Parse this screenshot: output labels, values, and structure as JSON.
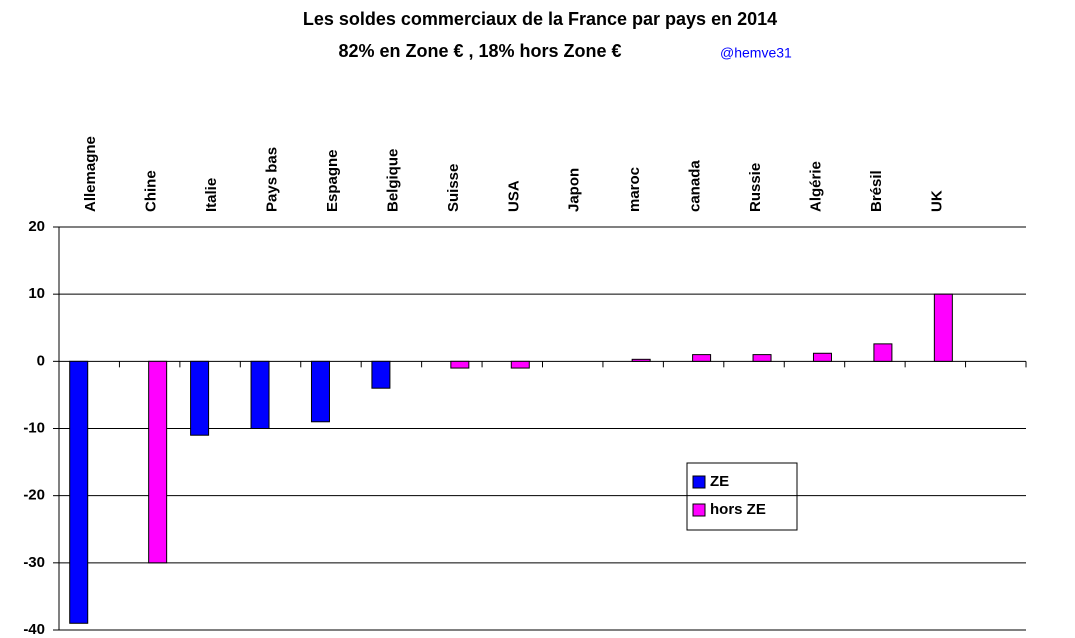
{
  "chart_data": {
    "type": "bar",
    "title": "Les soldes commerciaux de la France par pays en 2014",
    "subtitle": "82%  en Zone € , 18% hors Zone €",
    "annotation": "@hemve31",
    "categories": [
      "Allemagne",
      "Chine",
      "Italie",
      "Pays bas",
      "Espagne",
      "Belgique",
      "Suisse",
      "USA",
      "Japon",
      "maroc",
      "canada",
      "Russie",
      "Algérie",
      "Brésil",
      "UK",
      null
    ],
    "series": [
      {
        "name": "ZE",
        "color": "#0000ff",
        "values": [
          -39,
          null,
          -11,
          -10,
          -9,
          -4,
          null,
          null,
          null,
          null,
          null,
          null,
          null,
          null,
          null,
          null
        ]
      },
      {
        "name": "hors ZE",
        "color": "#ff00ff",
        "values": [
          null,
          -30,
          null,
          null,
          null,
          null,
          -1,
          -1,
          null,
          0.3,
          1,
          1,
          1.2,
          2.6,
          10,
          null
        ]
      }
    ],
    "ylim": [
      -40,
      20
    ],
    "yticks": [
      -40,
      -30,
      -20,
      -10,
      0,
      10,
      20
    ],
    "grid": true
  }
}
